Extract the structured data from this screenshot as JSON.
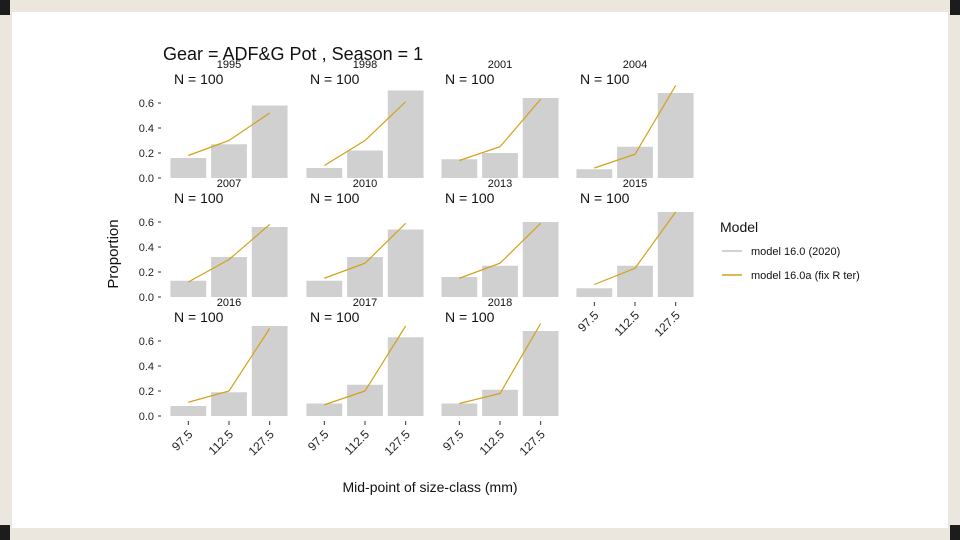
{
  "chart_data": {
    "type": "bar",
    "title": "Gear = ADF&G Pot , Season = 1",
    "xlabel": "Mid-point of size-class (mm)",
    "ylabel": "Proportion",
    "categories": [
      "97.5",
      "112.5",
      "127.5"
    ],
    "ylim": [
      0,
      0.72
    ],
    "yticks": [
      0.0,
      0.2,
      0.4,
      0.6
    ],
    "ytick_labels": [
      "0.0",
      "0.2",
      "0.4",
      "0.6"
    ],
    "legend": {
      "title": "Model",
      "position": "right",
      "entries": [
        {
          "label": "model 16.0 (2020)",
          "color": "#bdbdbd"
        },
        {
          "label": "model 16.0a (fix R ter)",
          "color": "#d4a017"
        }
      ]
    },
    "panels": [
      {
        "year": "1995",
        "n_label": "N = 100",
        "observed": [
          0.16,
          0.27,
          0.58
        ],
        "predicted": [
          0.18,
          0.3,
          0.52
        ]
      },
      {
        "year": "1998",
        "n_label": "N = 100",
        "observed": [
          0.08,
          0.22,
          0.7
        ],
        "predicted": [
          0.1,
          0.3,
          0.61
        ]
      },
      {
        "year": "2001",
        "n_label": "N = 100",
        "observed": [
          0.15,
          0.2,
          0.64
        ],
        "predicted": [
          0.14,
          0.25,
          0.63
        ]
      },
      {
        "year": "2004",
        "n_label": "N = 100",
        "observed": [
          0.07,
          0.25,
          0.68
        ],
        "predicted": [
          0.08,
          0.19,
          0.74
        ]
      },
      {
        "year": "2007",
        "n_label": "N = 100",
        "observed": [
          0.13,
          0.32,
          0.56
        ],
        "predicted": [
          0.12,
          0.3,
          0.58
        ]
      },
      {
        "year": "2010",
        "n_label": "N = 100",
        "observed": [
          0.13,
          0.32,
          0.54
        ],
        "predicted": [
          0.15,
          0.27,
          0.59
        ]
      },
      {
        "year": "2013",
        "n_label": "N = 100",
        "observed": [
          0.16,
          0.25,
          0.6
        ],
        "predicted": [
          0.15,
          0.27,
          0.59
        ]
      },
      {
        "year": "2015",
        "n_label": "N = 100",
        "observed": [
          0.07,
          0.25,
          0.68
        ],
        "predicted": [
          0.1,
          0.23,
          0.68
        ]
      },
      {
        "year": "2016",
        "n_label": "N = 100",
        "observed": [
          0.08,
          0.19,
          0.72
        ],
        "predicted": [
          0.11,
          0.2,
          0.7
        ]
      },
      {
        "year": "2017",
        "n_label": "N = 100",
        "observed": [
          0.1,
          0.25,
          0.63
        ],
        "predicted": [
          0.09,
          0.2,
          0.72
        ]
      },
      {
        "year": "2018",
        "n_label": "N = 100",
        "observed": [
          0.1,
          0.21,
          0.68
        ],
        "predicted": [
          0.1,
          0.18,
          0.74
        ]
      }
    ]
  }
}
